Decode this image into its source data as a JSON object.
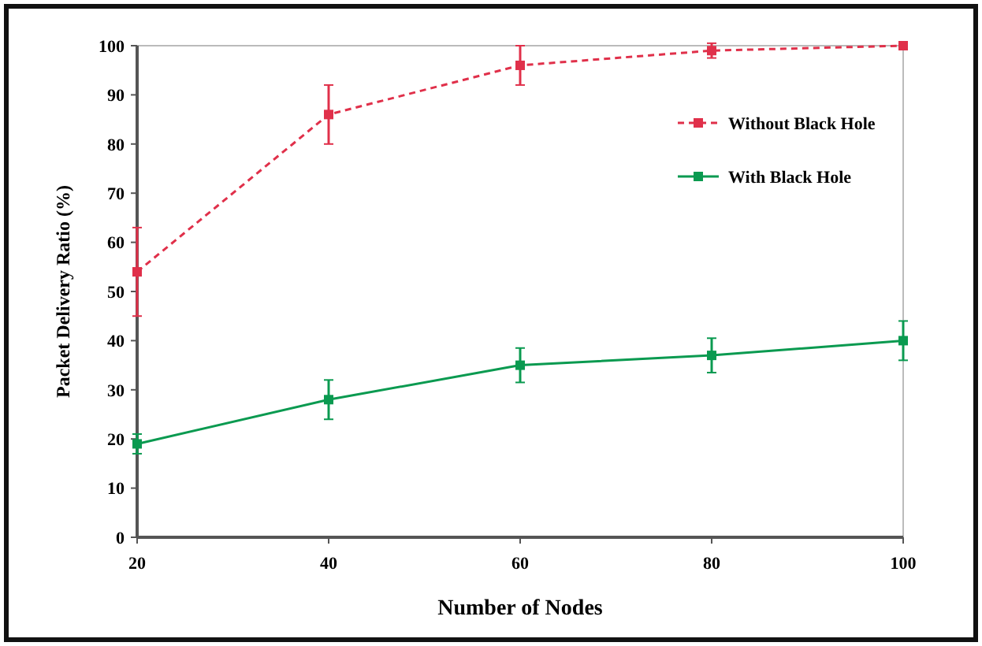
{
  "chart_data": {
    "type": "line",
    "xlabel": "Number of Nodes",
    "ylabel": "Packet Delivery Ratio (%)",
    "x": [
      20,
      40,
      60,
      80,
      100
    ],
    "xlim": [
      20,
      100
    ],
    "xticks": [
      20,
      40,
      60,
      80,
      100
    ],
    "ylim": [
      0,
      100
    ],
    "yticks": [
      0,
      10,
      20,
      30,
      40,
      50,
      60,
      70,
      80,
      90,
      100
    ],
    "grid": false,
    "legend": "top right",
    "marker": "square",
    "series": [
      {
        "name": "Without Black Hole",
        "color": "#e0304a",
        "line_style": "dashed",
        "values": [
          54,
          86,
          96,
          99,
          100
        ],
        "errors": [
          9,
          6,
          4,
          1.5,
          0.5
        ]
      },
      {
        "name": "With Black Hole",
        "color": "#0a9a50",
        "line_style": "solid",
        "values": [
          19,
          28,
          35,
          37,
          40
        ],
        "errors": [
          2,
          4,
          3.5,
          3.5,
          4
        ]
      }
    ]
  }
}
